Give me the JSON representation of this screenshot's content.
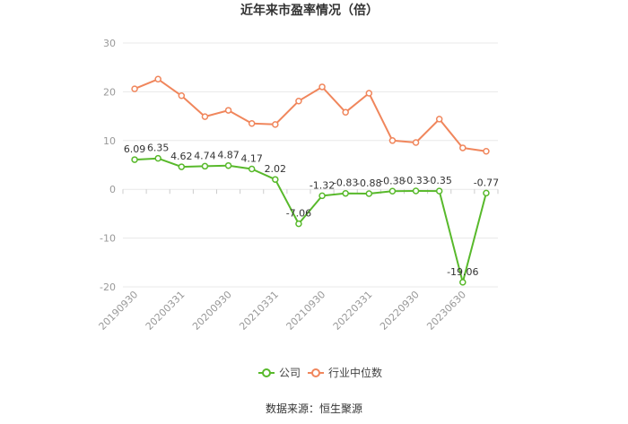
{
  "source": "数据来源：恒生聚源",
  "chart_data": {
    "type": "line",
    "title": "近年来市盈率情况（倍）",
    "categories": [
      "20190930",
      "",
      "20200331",
      "",
      "20200930",
      "",
      "20210331",
      "",
      "20210930",
      "",
      "20220331",
      "",
      "20220930",
      "",
      "20230630",
      ""
    ],
    "ylim": [
      -20,
      30
    ],
    "y_ticks": [
      -20,
      -10,
      0,
      10,
      20,
      30
    ],
    "grid": "horizontal",
    "legend_position": "bottom",
    "series": [
      {
        "name": "公司",
        "color": "#58b92b",
        "data_labels": true,
        "values": [
          6.09,
          6.35,
          4.62,
          4.74,
          4.87,
          4.17,
          2.02,
          -7.06,
          -1.32,
          -0.83,
          -0.88,
          -0.38,
          -0.33,
          -0.35,
          -19.06,
          -0.77
        ]
      },
      {
        "name": "行业中位数",
        "color": "#f0865c",
        "data_labels": false,
        "values": [
          20.6,
          22.6,
          19.2,
          14.9,
          16.2,
          13.5,
          13.3,
          18.1,
          21.0,
          15.8,
          19.7,
          10.0,
          9.6,
          14.4,
          8.5,
          7.8
        ]
      }
    ]
  }
}
